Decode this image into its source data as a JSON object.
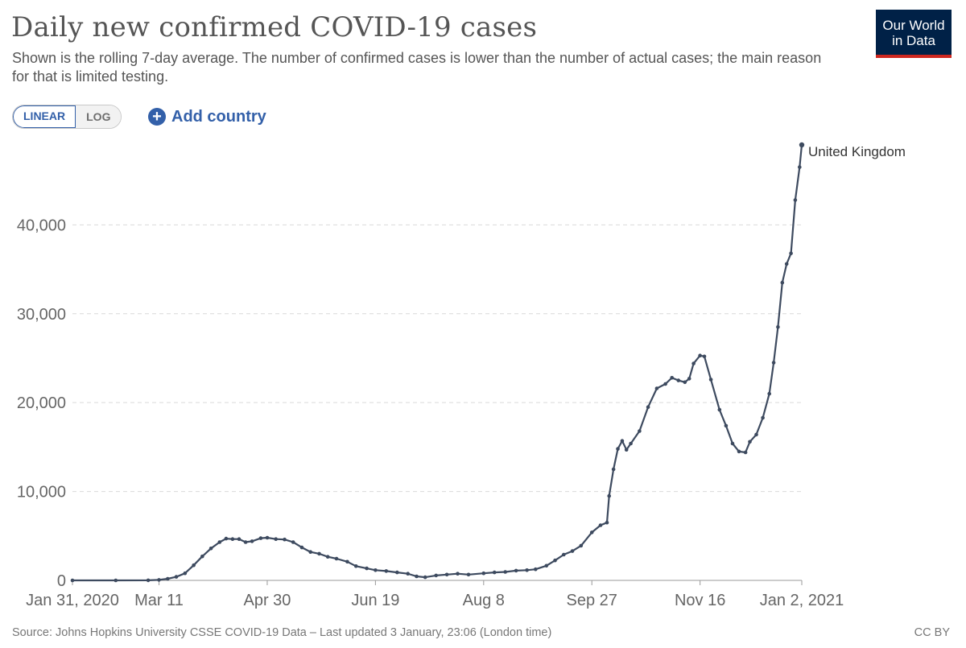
{
  "header": {
    "title": "Daily new confirmed COVID-19 cases",
    "subtitle": "Shown is the rolling 7-day average. The number of confirmed cases is lower than the number of actual cases; the main reason for that is limited testing."
  },
  "logo": {
    "line1": "Our World",
    "line2": "in Data",
    "bg_color": "#002147",
    "stripe_color": "#ce261e"
  },
  "controls": {
    "linear_label": "LINEAR",
    "log_label": "LOG",
    "add_country_label": "Add country",
    "active_scale": "linear",
    "accent_color": "#3360a9"
  },
  "chart_data": {
    "type": "line",
    "title": "Daily new confirmed COVID-19 cases",
    "xlabel": "",
    "ylabel": "",
    "x_range": [
      "2020-01-31",
      "2021-01-02"
    ],
    "ylim": [
      0,
      49000
    ],
    "y_ticks": [
      0,
      10000,
      20000,
      30000,
      40000
    ],
    "y_tick_labels": [
      "0",
      "10,000",
      "20,000",
      "30,000",
      "40,000"
    ],
    "x_ticks": [
      "2020-01-31",
      "2020-03-11",
      "2020-04-30",
      "2020-06-19",
      "2020-08-08",
      "2020-09-27",
      "2020-11-16",
      "2021-01-02"
    ],
    "x_tick_labels": [
      "Jan 31, 2020",
      "Mar 11",
      "Apr 30",
      "Jun 19",
      "Aug 8",
      "Sep 27",
      "Nov 16",
      "Jan 2, 2021"
    ],
    "grid": "horizontal dashed",
    "line_color": "#3d4a5f",
    "series": [
      {
        "name": "United Kingdom",
        "points": [
          [
            "2020-01-31",
            0
          ],
          [
            "2020-02-20",
            1
          ],
          [
            "2020-03-06",
            10
          ],
          [
            "2020-03-11",
            50
          ],
          [
            "2020-03-15",
            180
          ],
          [
            "2020-03-19",
            400
          ],
          [
            "2020-03-23",
            800
          ],
          [
            "2020-03-27",
            1700
          ],
          [
            "2020-03-31",
            2700
          ],
          [
            "2020-04-04",
            3600
          ],
          [
            "2020-04-08",
            4300
          ],
          [
            "2020-04-11",
            4700
          ],
          [
            "2020-04-14",
            4650
          ],
          [
            "2020-04-17",
            4650
          ],
          [
            "2020-04-20",
            4300
          ],
          [
            "2020-04-23",
            4400
          ],
          [
            "2020-04-27",
            4750
          ],
          [
            "2020-04-30",
            4800
          ],
          [
            "2020-05-04",
            4650
          ],
          [
            "2020-05-08",
            4600
          ],
          [
            "2020-05-12",
            4300
          ],
          [
            "2020-05-16",
            3700
          ],
          [
            "2020-05-20",
            3200
          ],
          [
            "2020-05-24",
            3000
          ],
          [
            "2020-05-28",
            2650
          ],
          [
            "2020-06-01",
            2450
          ],
          [
            "2020-06-06",
            2100
          ],
          [
            "2020-06-10",
            1600
          ],
          [
            "2020-06-15",
            1350
          ],
          [
            "2020-06-19",
            1150
          ],
          [
            "2020-06-24",
            1050
          ],
          [
            "2020-06-29",
            900
          ],
          [
            "2020-07-04",
            750
          ],
          [
            "2020-07-08",
            450
          ],
          [
            "2020-07-12",
            350
          ],
          [
            "2020-07-17",
            550
          ],
          [
            "2020-07-22",
            650
          ],
          [
            "2020-07-27",
            750
          ],
          [
            "2020-08-01",
            650
          ],
          [
            "2020-08-08",
            800
          ],
          [
            "2020-08-13",
            900
          ],
          [
            "2020-08-18",
            950
          ],
          [
            "2020-08-23",
            1100
          ],
          [
            "2020-08-28",
            1150
          ],
          [
            "2020-09-01",
            1250
          ],
          [
            "2020-09-06",
            1650
          ],
          [
            "2020-09-10",
            2250
          ],
          [
            "2020-09-14",
            2900
          ],
          [
            "2020-09-18",
            3300
          ],
          [
            "2020-09-22",
            3900
          ],
          [
            "2020-09-27",
            5400
          ],
          [
            "2020-10-01",
            6200
          ],
          [
            "2020-10-04",
            6500
          ],
          [
            "2020-10-05",
            9500
          ],
          [
            "2020-10-07",
            12500
          ],
          [
            "2020-10-09",
            14800
          ],
          [
            "2020-10-11",
            15700
          ],
          [
            "2020-10-13",
            14700
          ],
          [
            "2020-10-15",
            15400
          ],
          [
            "2020-10-19",
            16800
          ],
          [
            "2020-10-23",
            19500
          ],
          [
            "2020-10-27",
            21600
          ],
          [
            "2020-10-31",
            22100
          ],
          [
            "2020-11-03",
            22800
          ],
          [
            "2020-11-06",
            22500
          ],
          [
            "2020-11-09",
            22300
          ],
          [
            "2020-11-11",
            22700
          ],
          [
            "2020-11-13",
            24400
          ],
          [
            "2020-11-16",
            25300
          ],
          [
            "2020-11-18",
            25200
          ],
          [
            "2020-11-21",
            22600
          ],
          [
            "2020-11-25",
            19200
          ],
          [
            "2020-11-28",
            17400
          ],
          [
            "2020-12-01",
            15400
          ],
          [
            "2020-12-04",
            14500
          ],
          [
            "2020-12-07",
            14400
          ],
          [
            "2020-12-09",
            15600
          ],
          [
            "2020-12-12",
            16400
          ],
          [
            "2020-12-15",
            18300
          ],
          [
            "2020-12-18",
            21000
          ],
          [
            "2020-12-20",
            24500
          ],
          [
            "2020-12-22",
            28500
          ],
          [
            "2020-12-24",
            33500
          ],
          [
            "2020-12-26",
            35600
          ],
          [
            "2020-12-28",
            36800
          ],
          [
            "2020-12-30",
            42800
          ],
          [
            "2021-01-01",
            46500
          ],
          [
            "2021-01-02",
            49000
          ]
        ]
      }
    ]
  },
  "footer": {
    "source": "Source: Johns Hopkins University CSSE COVID-19 Data – Last updated 3 January, 23:06 (London time)",
    "license": "CC BY"
  }
}
